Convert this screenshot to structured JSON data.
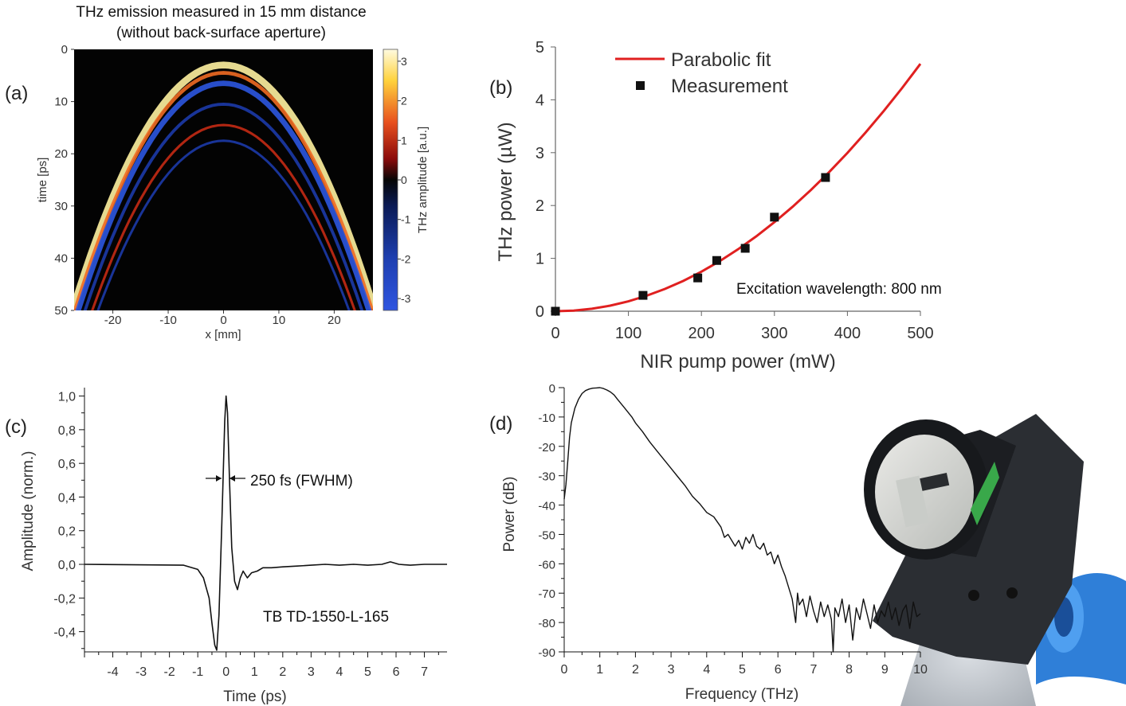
{
  "panel_labels": {
    "a": "(a)",
    "b": "(b)",
    "c": "(c)",
    "d": "(d)"
  },
  "colors": {
    "fit": "#e02020",
    "trace": "#111111",
    "hot": "#ffd23c",
    "cold": "#2a4fd6",
    "camera_blue": "#2f7fd8",
    "camera_body": "#2b2e33"
  },
  "chart_data": [
    {
      "type": "heatmap",
      "title": "THz emission measured in 15 mm distance",
      "subtitle": "(without back-surface aperture)",
      "xlabel": "x [mm]",
      "ylabel": "time [ps]",
      "xlim": [
        -27,
        27
      ],
      "ylim": [
        0,
        50
      ],
      "x_ticks": [
        -20,
        -10,
        0,
        10,
        20
      ],
      "y_ticks": [
        0,
        10,
        20,
        30,
        40,
        50
      ],
      "colorbar": {
        "label": "THz amplitude [a.u.]",
        "range": [
          -3.3,
          3.3
        ],
        "ticks": [
          3,
          2,
          1,
          0,
          -1,
          -2,
          -3
        ]
      },
      "wavefront": {
        "apex_time_ps": 4,
        "arrival_time_at_edge_ps": 50,
        "edge_x_mm": 27
      },
      "bands": [
        {
          "offset_ps": -1.0,
          "amplitude": 3.3
        },
        {
          "offset_ps": 0.5,
          "amplitude": 1.8
        },
        {
          "offset_ps": 2.5,
          "amplitude": -2.6
        },
        {
          "offset_ps": 6.5,
          "amplitude": -1.5
        },
        {
          "offset_ps": 10.5,
          "amplitude": 1.2
        },
        {
          "offset_ps": 13.5,
          "amplitude": -1.0
        }
      ]
    },
    {
      "type": "scatter",
      "xlabel": "NIR pump power (mW)",
      "ylabel": "THz power (µW)",
      "xlim": [
        0,
        500
      ],
      "ylim": [
        0,
        5
      ],
      "x_ticks": [
        0,
        100,
        200,
        300,
        400,
        500
      ],
      "y_ticks": [
        0,
        1,
        2,
        3,
        4,
        5
      ],
      "legend_position": "top-left",
      "annotation": "Excitation wavelength: 800 nm",
      "series": [
        {
          "name": "Parabolic fit",
          "kind": "line",
          "x": [
            0,
            25,
            50,
            75,
            100,
            125,
            150,
            175,
            200,
            225,
            250,
            275,
            300,
            325,
            350,
            375,
            400,
            425,
            450,
            475,
            500
          ],
          "y": [
            0.0,
            0.012,
            0.047,
            0.105,
            0.187,
            0.293,
            0.421,
            0.573,
            0.749,
            0.948,
            1.17,
            1.416,
            1.685,
            1.978,
            2.294,
            2.633,
            2.996,
            3.382,
            3.792,
            4.225,
            4.68
          ]
        },
        {
          "name": "Measurement",
          "kind": "markers",
          "x": [
            0,
            120,
            195,
            221,
            260,
            300,
            370
          ],
          "y": [
            0.0,
            0.3,
            0.63,
            0.96,
            1.19,
            1.78,
            2.53
          ]
        }
      ]
    },
    {
      "type": "line",
      "xlabel": "Time (ps)",
      "ylabel": "Amplitude (norm.)",
      "xlim": [
        -5,
        7.8
      ],
      "ylim": [
        -0.52,
        1.05
      ],
      "x_ticks": [
        -4,
        -3,
        -2,
        -1,
        0,
        1,
        2,
        3,
        4,
        5,
        6,
        7
      ],
      "y_ticks": [
        "1,0",
        "0,8",
        "0,6",
        "0,4",
        "0,2",
        "0,0",
        "-0,2",
        "-0,4"
      ],
      "y_tick_values": [
        1.0,
        0.8,
        0.6,
        0.4,
        0.2,
        0.0,
        -0.2,
        -0.4
      ],
      "annotation": "250 fs (FWHM)",
      "label": "TB TD-1550-L-165",
      "series": [
        {
          "x": [
            -5,
            -1.5,
            -1.0,
            -0.8,
            -0.6,
            -0.5,
            -0.4,
            -0.33,
            -0.25,
            -0.15,
            -0.05,
            0.0,
            0.05,
            0.12,
            0.2,
            0.3,
            0.4,
            0.5,
            0.6,
            0.75,
            0.9,
            1.1,
            1.3,
            1.6,
            2.0,
            2.5,
            3.0,
            3.5,
            4.0,
            4.5,
            5.0,
            5.5,
            5.8,
            6.1,
            6.5,
            7.0,
            7.8
          ],
          "y": [
            0.0,
            -0.005,
            -0.03,
            -0.08,
            -0.2,
            -0.35,
            -0.48,
            -0.51,
            -0.3,
            0.25,
            0.85,
            1.0,
            0.9,
            0.5,
            0.1,
            -0.1,
            -0.15,
            -0.08,
            -0.04,
            -0.08,
            -0.05,
            -0.04,
            -0.02,
            -0.02,
            -0.015,
            -0.01,
            -0.005,
            0.0,
            -0.005,
            0.0,
            -0.005,
            0.0,
            0.015,
            0.0,
            -0.005,
            0.0,
            0.0
          ]
        }
      ]
    },
    {
      "type": "line",
      "xlabel": "Frequency (THz)",
      "ylabel": "Power (dB)",
      "xlim": [
        0,
        10
      ],
      "ylim": [
        -90,
        0
      ],
      "x_ticks": [
        0,
        1,
        2,
        3,
        4,
        5,
        6,
        7,
        8,
        9,
        10
      ],
      "y_ticks": [
        0,
        -10,
        -20,
        -30,
        -40,
        -50,
        -60,
        -70,
        -80,
        -90
      ],
      "series": [
        {
          "x": [
            0.0,
            0.05,
            0.1,
            0.15,
            0.2,
            0.3,
            0.4,
            0.5,
            0.6,
            0.7,
            0.8,
            0.9,
            1.0,
            1.1,
            1.2,
            1.3,
            1.4,
            1.5,
            1.6,
            1.7,
            1.8,
            1.9,
            2.0,
            2.2,
            2.4,
            2.6,
            2.8,
            3.0,
            3.2,
            3.4,
            3.6,
            3.8,
            4.0,
            4.2,
            4.4,
            4.5,
            4.6,
            4.8,
            4.9,
            5.0,
            5.1,
            5.2,
            5.3,
            5.4,
            5.5,
            5.6,
            5.7,
            5.8,
            5.9,
            6.0,
            6.1,
            6.2,
            6.3,
            6.4,
            6.45,
            6.5,
            6.55,
            6.6,
            6.7,
            6.8,
            6.9,
            7.0,
            7.1,
            7.2,
            7.3,
            7.4,
            7.5,
            7.55,
            7.6,
            7.7,
            7.8,
            7.9,
            8.0,
            8.1,
            8.2,
            8.3,
            8.4,
            8.5,
            8.6,
            8.7,
            8.8,
            8.9,
            9.0,
            9.1,
            9.2,
            9.3,
            9.4,
            9.5,
            9.6,
            9.7,
            9.8,
            9.9,
            10.0
          ],
          "y": [
            -38,
            -33,
            -25,
            -17,
            -12,
            -7,
            -4,
            -2,
            -1,
            -0.5,
            -0.2,
            -0.1,
            0,
            -0.3,
            -0.8,
            -1.5,
            -2.5,
            -4,
            -5.5,
            -7,
            -8.5,
            -10,
            -12,
            -15,
            -18.5,
            -21.5,
            -24.5,
            -27.5,
            -30.5,
            -33.5,
            -37,
            -39.5,
            -42.5,
            -44,
            -47.5,
            -51,
            -50,
            -54,
            -52,
            -55,
            -51,
            -53,
            -50,
            -54,
            -55,
            -53,
            -57,
            -56,
            -60,
            -57,
            -61,
            -64,
            -68,
            -72,
            -76,
            -80,
            -70,
            -74,
            -72,
            -78,
            -71,
            -76,
            -80,
            -73,
            -78,
            -74,
            -79,
            -90,
            -75,
            -78,
            -72,
            -80,
            -74,
            -86,
            -75,
            -79,
            -72,
            -77,
            -82,
            -74,
            -80,
            -76,
            -78,
            -73,
            -79,
            -75,
            -81,
            -76,
            -74,
            -82,
            -73,
            -78,
            -77
          ]
        }
      ]
    }
  ]
}
